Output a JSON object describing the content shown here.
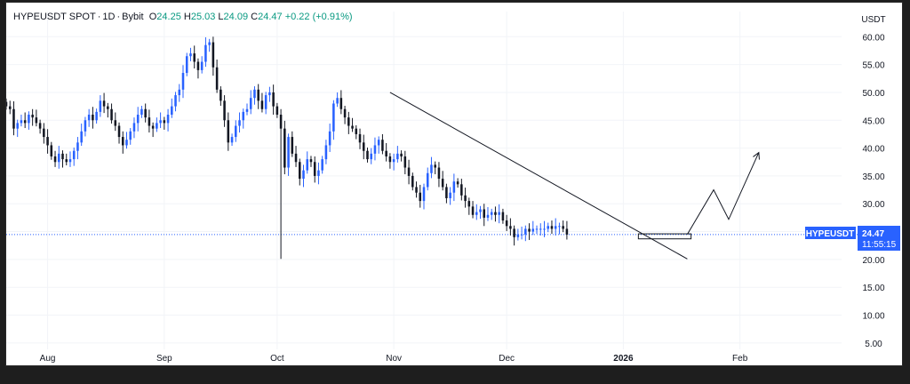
{
  "legend": {
    "symbol": "HYPEUSDT SPOT",
    "interval": "1D",
    "exchange": "Bybit",
    "o_label": "O",
    "o_value": "24.25",
    "h_label": "H",
    "h_value": "25.03",
    "l_label": "L",
    "l_value": "24.09",
    "c_label": "C",
    "c_value": "24.47",
    "change": "+0.22 (+0.91%)"
  },
  "price_label": {
    "symbol": "HYPEUSDT",
    "price": "24.47",
    "countdown": "11:55:15"
  },
  "colors": {
    "up": "#2962ff",
    "down": "#131722",
    "price_tag": "#2962ff",
    "grid": "#f0f3fa"
  },
  "chart_data": {
    "type": "candlestick",
    "currency_label": "USDT",
    "y_ticks": [
      "60.00",
      "55.00",
      "50.00",
      "45.00",
      "40.00",
      "35.00",
      "30.00",
      "25.00",
      "20.00",
      "15.00",
      "10.00",
      "5.00"
    ],
    "y_tick_values": [
      60,
      55,
      50,
      45,
      40,
      35,
      30,
      25,
      20,
      15,
      10,
      5
    ],
    "x_tick_labels": [
      "Aug",
      "Sep",
      "Oct",
      "Nov",
      "Dec",
      "2026",
      "Feb"
    ],
    "x_tick_days": [
      0,
      31,
      61,
      92,
      122,
      153,
      184
    ],
    "x_range_days": [
      -11,
      211
    ],
    "y_range": [
      2.9,
      64.2
    ],
    "last_price": 24.47,
    "trendline": {
      "from": [
        91,
        50.0
      ],
      "to": [
        170,
        20.1
      ]
    },
    "support_box": {
      "day_from": 157,
      "day_to": 171,
      "price_low": 23.7,
      "price_high": 24.6
    },
    "projection_path": [
      [
        170,
        24.5
      ],
      [
        177,
        32.5
      ],
      [
        181,
        27.2
      ],
      [
        189,
        39.2
      ]
    ],
    "candles_close": [
      47.5,
      47,
      43.5,
      44.5,
      45,
      44.5,
      46,
      45.5,
      44.5,
      43.5,
      42,
      40.5,
      38.5,
      37.5,
      39,
      38,
      37.5,
      38,
      39.5,
      41,
      43,
      45,
      46,
      45,
      46.5,
      48.5,
      47.5,
      47,
      45,
      44,
      42,
      40.5,
      41.5,
      43,
      44.5,
      46,
      47,
      45.5,
      44,
      43.5,
      44.5,
      45,
      44.5,
      46,
      47.5,
      49.5,
      50.5,
      53.5,
      56.5,
      57,
      55.5,
      54,
      55.5,
      58.5,
      59,
      54.5,
      50.5,
      48.5,
      45,
      41,
      42,
      44,
      45,
      46.5,
      47,
      49,
      50.5,
      48.5,
      47,
      49.5,
      50,
      47.5,
      46,
      43.5,
      36.5,
      42,
      39,
      37.5,
      34.5,
      36,
      38,
      37.5,
      35,
      36,
      38,
      40.5,
      43,
      48,
      49,
      47,
      45.5,
      44,
      43.5,
      42.5,
      41,
      39.5,
      38,
      39,
      40.5,
      41.5,
      39.5,
      38.5,
      37.5,
      38,
      39,
      38.5,
      36.5,
      35,
      33,
      32,
      30.5,
      33,
      35.5,
      37,
      36.5,
      34.5,
      33,
      31,
      32,
      34,
      33.5,
      31.5,
      30.5,
      29.5,
      28,
      28.5,
      29,
      27.5,
      28,
      28.5,
      28,
      28.5,
      27,
      26,
      25.5,
      24,
      24.5,
      24.5,
      25.5,
      25,
      25.5,
      25.5,
      25.5,
      25.5,
      26,
      25.5,
      26,
      26,
      25.5,
      24.47
    ],
    "open_day": 0,
    "open_day_note": "first candle at day offset",
    "first_day": -11
  }
}
